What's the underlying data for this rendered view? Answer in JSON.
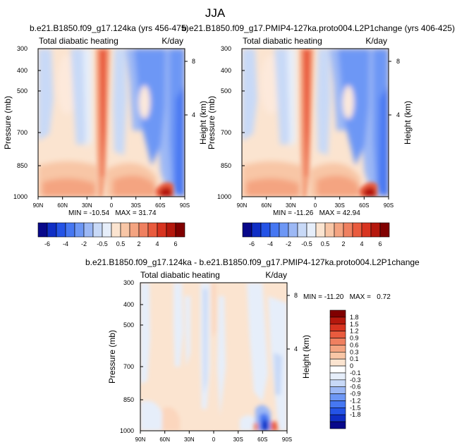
{
  "page_title": "JJA",
  "chart_data": [
    {
      "type": "heatmap",
      "title": "b.e21.B1850.f09_g17.124ka (yrs 456-475)",
      "subtitle_left": "Total diabatic heating",
      "subtitle_right": "K/day",
      "ylabel": "Pressure (mb)",
      "ylabel_right": "Height (km)",
      "xlabel": "",
      "x_ticks": [
        "90N",
        "60N",
        "30N",
        "0",
        "30S",
        "60S",
        "90S"
      ],
      "y_ticks": [
        "300",
        "400",
        "500",
        "700",
        "850",
        "1000"
      ],
      "y_ticks_right": [
        "8",
        "4"
      ],
      "stats": "MIN = -10.54   MAX = 31.74",
      "min": -10.54,
      "max": 31.74
    },
    {
      "type": "heatmap",
      "title": "b.e21.B1850.f09_g17.PMIP4-127ka.proto004.L2P1change (yrs 406-425)",
      "subtitle_left": "Total diabatic heating",
      "subtitle_right": "K/day",
      "ylabel": "Pressure (mb)",
      "ylabel_right": "Height (km)",
      "xlabel": "",
      "x_ticks": [
        "90N",
        "60N",
        "30N",
        "0",
        "30S",
        "60S",
        "90S"
      ],
      "y_ticks": [
        "300",
        "400",
        "500",
        "700",
        "850",
        "1000"
      ],
      "y_ticks_right": [
        "8",
        "4"
      ],
      "stats": "MIN = -11.26   MAX = 42.94",
      "min": -11.26,
      "max": 42.94
    },
    {
      "type": "heatmap",
      "title": "b.e21.B1850.f09_g17.124ka - b.e21.B1850.f09_g17.PMIP4-127ka.proto004.L2P1change",
      "subtitle_left": "Total diabatic heating",
      "subtitle_right": "K/day",
      "ylabel": "Pressure (mb)",
      "ylabel_right": "Height (km)",
      "xlabel": "",
      "x_ticks": [
        "90N",
        "60N",
        "30N",
        "0",
        "30S",
        "60S",
        "90S"
      ],
      "y_ticks": [
        "300",
        "400",
        "500",
        "700",
        "850",
        "1000"
      ],
      "y_ticks_right": [
        "8",
        "4"
      ],
      "stats": "MIN = -11.20   MAX =   0.72",
      "min": -11.2,
      "max": 0.72
    }
  ],
  "colorbar_top": {
    "labels": [
      "-6",
      "-4",
      "-2",
      "-0.5",
      "0.5",
      "2",
      "4",
      "6"
    ],
    "colors": [
      "#08088a",
      "#0f2ec5",
      "#2453e6",
      "#4677f2",
      "#6d97f5",
      "#9cb8f5",
      "#c8d9f7",
      "#e6eefa",
      "#fbe4d0",
      "#f8c6a6",
      "#f4a481",
      "#ef8060",
      "#e95b3e",
      "#d83420",
      "#b5180d",
      "#800000"
    ]
  },
  "colorbar_bottom": {
    "labels": [
      "1.8",
      "1.5",
      "1.2",
      "0.9",
      "0.6",
      "0.3",
      "0.1",
      "0",
      "-0.1",
      "-0.3",
      "-0.6",
      "-0.9",
      "-1.2",
      "-1.5",
      "-1.8"
    ],
    "colors": [
      "#800000",
      "#b5180d",
      "#d83420",
      "#e95b3e",
      "#ef8060",
      "#f4a481",
      "#f8c6a6",
      "#fbe4d0",
      "#ffffff",
      "#e6eefa",
      "#c8d9f7",
      "#9cb8f5",
      "#6d97f5",
      "#4677f2",
      "#2453e6",
      "#0f2ec5",
      "#08088a"
    ]
  }
}
